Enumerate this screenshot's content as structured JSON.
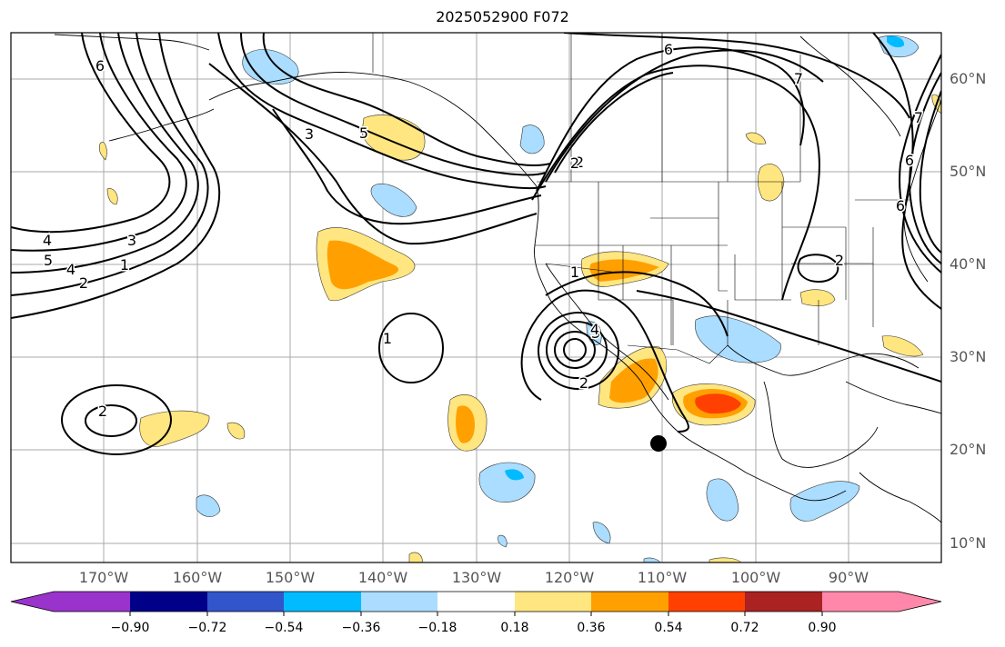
{
  "title": "2025052900 F072",
  "lat_labels": [
    "60°N",
    "50°N",
    "40°N",
    "30°N",
    "20°N",
    "10°N"
  ],
  "lon_labels": [
    "170°W",
    "160°W",
    "150°W",
    "140°W",
    "130°W",
    "120°W",
    "110°W",
    "100°W",
    "90°W"
  ],
  "colorbar": {
    "ticks": [
      "−0.90",
      "−0.72",
      "−0.54",
      "−0.36",
      "−0.18",
      "0.18",
      "0.36",
      "0.54",
      "0.72",
      "0.90"
    ],
    "colors": [
      "#9933cc",
      "#000088",
      "#3355cc",
      "#00bbff",
      "#aaddff",
      "#ffffff",
      "#ffe680",
      "#ffa000",
      "#ff4000",
      "#aa2222",
      "#ff88aa"
    ]
  },
  "contour_labels": [
    "6",
    "6",
    "7",
    "6",
    "7",
    "6",
    "5",
    "3",
    "2",
    "4",
    "5",
    "3",
    "4",
    "1",
    "2",
    "1",
    "2",
    "3",
    "4",
    "2",
    "1",
    "2",
    "2"
  ]
}
